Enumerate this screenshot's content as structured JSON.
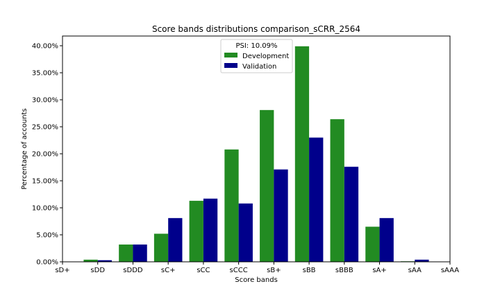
{
  "chart_data": {
    "type": "bar",
    "title": "Score bands distributions comparison_sCRR_2564",
    "xlabel": "Score bands",
    "ylabel": "Percentage of accounts",
    "x_tick_labels": [
      "sD+",
      "sDD",
      "sDDD",
      "sC+",
      "sCC",
      "sCCC",
      "sB+",
      "sBB",
      "sBBB",
      "sA+",
      "sAA",
      "sAAA"
    ],
    "ylim": [
      0,
      41.8
    ],
    "y_ticks": [
      0,
      5,
      10,
      15,
      20,
      25,
      30,
      35,
      40
    ],
    "y_tick_format": "percent_2dp",
    "grid": false,
    "legend": {
      "placement": "top-center",
      "title": "PSI: 10.09%",
      "entries": [
        "Development",
        "Validation"
      ]
    },
    "series": [
      {
        "name": "Development",
        "color": "#228b22",
        "values": [
          0,
          0.4,
          3.2,
          5.2,
          11.3,
          20.8,
          28.1,
          39.9,
          26.4,
          6.5,
          0.1,
          0
        ]
      },
      {
        "name": "Validation",
        "color": "#00008b",
        "values": [
          0,
          0.3,
          3.2,
          8.1,
          11.7,
          10.8,
          17.1,
          23.0,
          17.6,
          8.1,
          0.4,
          0
        ]
      }
    ]
  }
}
